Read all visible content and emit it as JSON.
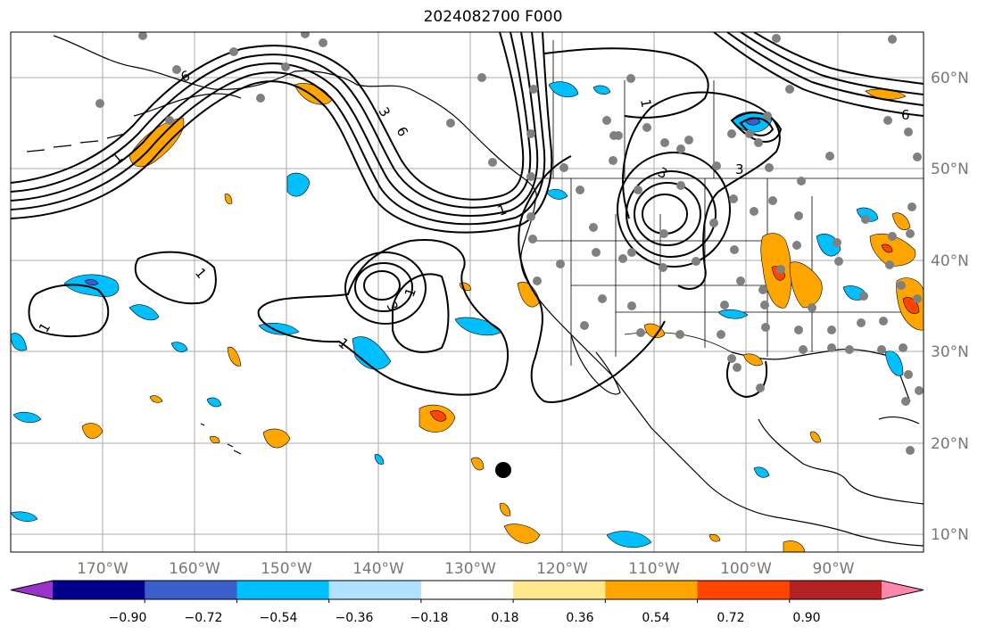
{
  "title": "2024082700 F000",
  "map": {
    "lon_labels": [
      "170°W",
      "160°W",
      "150°W",
      "140°W",
      "130°W",
      "120°W",
      "110°W",
      "100°W",
      "90°W"
    ],
    "lat_labels": [
      "60°N",
      "50°N",
      "40°N",
      "30°N",
      "20°N",
      "10°N"
    ],
    "contour_labels": [
      "1",
      "3",
      "6"
    ]
  },
  "colorbar": {
    "colors": [
      "#9933cc",
      "#000088",
      "#3a5fcd",
      "#00bfff",
      "#b0e2ff",
      "#ffffff",
      "#ffe98a",
      "#ffa500",
      "#ff4500",
      "#b22222",
      "#ff88aa"
    ],
    "tick_labels": [
      "−0.90",
      "−0.72",
      "−0.54",
      "−0.36",
      "−0.18",
      "0.18",
      "0.36",
      "0.54",
      "0.72",
      "0.90"
    ]
  }
}
